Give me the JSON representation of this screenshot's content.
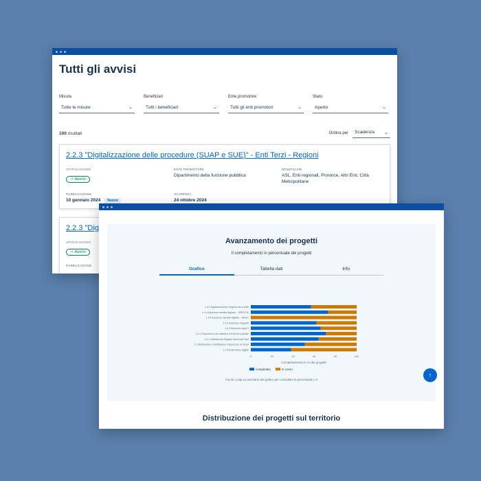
{
  "window1": {
    "title": "Tutti gli avvisi",
    "filters": [
      {
        "label": "Misura",
        "value": "Tutte le misure"
      },
      {
        "label": "Beneficiari",
        "value": "Tutti i beneficiari"
      },
      {
        "label": "Ente promotore",
        "value": "Tutti gli enti promotori"
      },
      {
        "label": "Stato",
        "value": "Aperto"
      }
    ],
    "results_count": "100",
    "results_suffix": " risultati",
    "sort_label": "Ordina per",
    "sort_value": "Scadenza",
    "cards": [
      {
        "title": "2.2.3 \"Digitalizzazione delle procedure (SUAP e SUE)\" - Enti Terzi - Regioni",
        "status_label": "Status avviso",
        "status_value": "Aperto",
        "ente_label": "Ente promotore",
        "ente_value": "Dipartimento della funzione pubblica",
        "beneficiari_label": "Beneficiari",
        "beneficiari_value": "ASL, Enti regionali, Province, Altri Enti, Città Metropolitane",
        "pub_label": "Pubblicazione",
        "pub_value": "10 gennaio 2024",
        "new_badge": "Nuovo",
        "scad_label": "Scadenza",
        "scad_value": "24 ottobre 2024"
      },
      {
        "title": "2.2.3 \"Dig",
        "status_label": "Status avviso",
        "status_value": "Aperto",
        "pub_label": "Pubblicazione"
      }
    ]
  },
  "window2": {
    "chart_title": "Avanzamento dei progetti",
    "chart_subtitle": "Il completamento in percentuale dei progetti",
    "tabs": [
      "Grafico",
      "Tabella dati",
      "Info"
    ],
    "hint": "Fai clic o tap su una barra del grafico per consultare la percentuale o il",
    "section_title": "Distribuzione dei progetti sul territorio",
    "colors": {
      "completato": "#0066cc",
      "in_corso": "#cc7a00"
    }
  },
  "chart_data": {
    "type": "bar",
    "orientation": "horizontal",
    "stacked": true,
    "categories": [
      "1.4.3 Digitalizzazione degli avvisi ai ditte",
      "1.4.4 Adozione identità digitale – SPID/CIE",
      "1.4.4 Adozione identità digitale – ANSC",
      "1.4.3 Adozione PagoPA",
      "1.4.3 Adozione AppIO",
      "1.4.1 Esperienza del cittadino nei servizi pubblici",
      "1.3.1 Piattaforma Digitale Nazionale Dati",
      "1.2 Abilitazione e facilitazione migrazione al Cloud",
      "1.1 Infrastrutture digitali"
    ],
    "series": [
      {
        "name": "completato",
        "values": [
          57,
          73,
          0,
          62,
          66,
          71,
          64,
          51,
          38
        ]
      },
      {
        "name": "in corso",
        "values": [
          43,
          27,
          100,
          38,
          34,
          29,
          36,
          49,
          62
        ]
      }
    ],
    "xlabel": "Completamento in % dei progetti",
    "xticks": [
      0,
      20,
      40,
      60,
      80,
      100
    ],
    "xlim": [
      0,
      100
    ],
    "legend": "bottom"
  }
}
